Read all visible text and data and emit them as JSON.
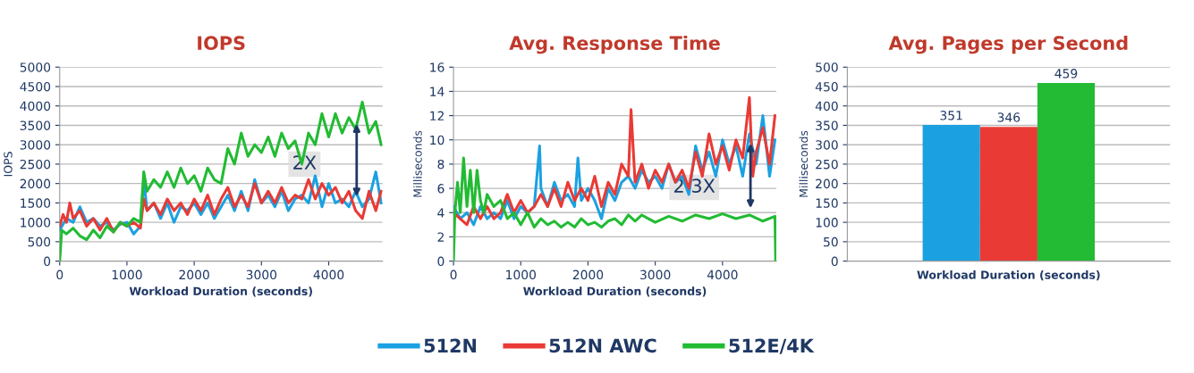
{
  "chart_data": [
    {
      "type": "line",
      "title": "IOPS",
      "xlabel": "Workload Duration (seconds)",
      "ylabel": "IOPS",
      "xlim": [
        0,
        4800
      ],
      "xticks": [
        0,
        1000,
        2000,
        3000,
        4000
      ],
      "ylim": [
        0,
        5000
      ],
      "yticks": [
        0,
        500,
        1000,
        1500,
        2000,
        2500,
        3000,
        3500,
        4000,
        4500,
        5000
      ],
      "grid": "y",
      "legend": "bottom",
      "annotations": [
        "2X"
      ],
      "series": [
        {
          "name": "512N",
          "color": "#1ba1e2",
          "x": [
            0,
            100,
            200,
            300,
            400,
            500,
            600,
            700,
            800,
            900,
            1000,
            1100,
            1200,
            1250,
            1300,
            1400,
            1500,
            1600,
            1700,
            1800,
            1900,
            2000,
            2100,
            2200,
            2300,
            2400,
            2500,
            2600,
            2700,
            2800,
            2900,
            3000,
            3100,
            3200,
            3300,
            3400,
            3500,
            3600,
            3700,
            3800,
            3900,
            4000,
            4100,
            4200,
            4300,
            4400,
            4500,
            4600,
            4700,
            4780
          ],
          "values": [
            800,
            1100,
            1000,
            1400,
            1000,
            1100,
            900,
            1000,
            800,
            950,
            1000,
            700,
            900,
            2100,
            1300,
            1500,
            1100,
            1500,
            1000,
            1400,
            1300,
            1500,
            1200,
            1500,
            1100,
            1400,
            1700,
            1300,
            1800,
            1300,
            2100,
            1500,
            1700,
            1400,
            1800,
            1300,
            1600,
            1700,
            1500,
            2200,
            1400,
            2000,
            1500,
            1600,
            1400,
            1800,
            1400,
            1600,
            2300,
            1500
          ]
        },
        {
          "name": "512N AWC",
          "color": "#e93a35",
          "x": [
            0,
            50,
            100,
            150,
            200,
            300,
            400,
            500,
            600,
            700,
            800,
            900,
            1000,
            1100,
            1200,
            1250,
            1300,
            1400,
            1500,
            1600,
            1700,
            1800,
            1900,
            2000,
            2100,
            2200,
            2300,
            2400,
            2500,
            2600,
            2700,
            2800,
            2900,
            3000,
            3100,
            3200,
            3300,
            3400,
            3500,
            3600,
            3700,
            3800,
            3900,
            4000,
            4100,
            4200,
            4300,
            4400,
            4500,
            4600,
            4700,
            4780
          ],
          "values": [
            900,
            1200,
            1000,
            1500,
            1100,
            1300,
            900,
            1100,
            800,
            1100,
            750,
            1000,
            900,
            1000,
            850,
            1600,
            1300,
            1500,
            1200,
            1600,
            1300,
            1500,
            1200,
            1600,
            1300,
            1700,
            1200,
            1600,
            1900,
            1400,
            1700,
            1400,
            2000,
            1500,
            1800,
            1500,
            1900,
            1500,
            1700,
            1600,
            2100,
            1600,
            2000,
            1700,
            1900,
            1500,
            1800,
            1300,
            1100,
            1800,
            1300,
            1800
          ]
        },
        {
          "name": "512E/4K",
          "color": "#22bb33",
          "x": [
            0,
            30,
            100,
            200,
            300,
            400,
            500,
            600,
            700,
            800,
            900,
            1000,
            1100,
            1200,
            1250,
            1300,
            1400,
            1500,
            1600,
            1700,
            1800,
            1900,
            2000,
            2100,
            2200,
            2300,
            2400,
            2500,
            2600,
            2700,
            2800,
            2900,
            3000,
            3100,
            3200,
            3300,
            3400,
            3500,
            3600,
            3700,
            3800,
            3900,
            4000,
            4100,
            4200,
            4300,
            4400,
            4500,
            4600,
            4700,
            4780
          ],
          "values": [
            0,
            800,
            700,
            850,
            650,
            550,
            800,
            600,
            900,
            750,
            1000,
            900,
            1100,
            1000,
            2300,
            1800,
            2100,
            1900,
            2300,
            1900,
            2400,
            2000,
            2200,
            1800,
            2400,
            2100,
            2000,
            2900,
            2500,
            3300,
            2700,
            3000,
            2800,
            3200,
            2700,
            3300,
            2900,
            3100,
            2500,
            3300,
            3000,
            3800,
            3200,
            3800,
            3300,
            3700,
            3400,
            4100,
            3300,
            3600,
            3000
          ]
        }
      ]
    },
    {
      "type": "line",
      "title": "Avg. Response Time",
      "xlabel": "Workload Duration (seconds)",
      "ylabel": "Milliseconds",
      "xlim": [
        0,
        4800
      ],
      "xticks": [
        0,
        1000,
        2000,
        3000,
        4000
      ],
      "ylim": [
        0,
        16
      ],
      "yticks": [
        0,
        2,
        4,
        6,
        8,
        10,
        12,
        14,
        16
      ],
      "grid": "y",
      "annotations": [
        "2.3X"
      ],
      "series": [
        {
          "color": "#1ba1e2",
          "x": [
            0,
            100,
            200,
            300,
            400,
            500,
            600,
            700,
            800,
            900,
            1000,
            1100,
            1200,
            1280,
            1300,
            1400,
            1500,
            1600,
            1700,
            1800,
            1850,
            1900,
            2000,
            2100,
            2200,
            2300,
            2400,
            2500,
            2600,
            2700,
            2800,
            2900,
            3000,
            3100,
            3200,
            3300,
            3400,
            3500,
            3600,
            3700,
            3800,
            3900,
            4000,
            4100,
            4200,
            4300,
            4400,
            4500,
            4600,
            4700,
            4780
          ],
          "values": [
            4.5,
            3.5,
            4,
            3,
            4.5,
            3.5,
            4,
            3.5,
            5,
            3.5,
            4.5,
            4,
            4.5,
            9.5,
            6,
            4.5,
            6.5,
            5,
            5.5,
            4.5,
            8.5,
            5,
            6,
            5,
            3.5,
            6,
            5,
            6.5,
            7,
            6,
            7.5,
            6.5,
            7,
            6,
            8,
            6.5,
            7,
            5.5,
            9.5,
            7.5,
            9,
            7,
            10,
            8,
            9.5,
            7,
            10.5,
            8,
            12,
            7,
            10
          ]
        },
        {
          "color": "#e93a35",
          "x": [
            0,
            100,
            200,
            300,
            400,
            500,
            600,
            700,
            800,
            900,
            1000,
            1100,
            1200,
            1300,
            1400,
            1500,
            1600,
            1700,
            1800,
            1900,
            2000,
            2100,
            2200,
            2300,
            2400,
            2500,
            2600,
            2640,
            2700,
            2800,
            2900,
            3000,
            3100,
            3200,
            3300,
            3400,
            3500,
            3600,
            3700,
            3800,
            3900,
            4000,
            4100,
            4200,
            4300,
            4400,
            4450,
            4500,
            4600,
            4700,
            4780
          ],
          "values": [
            4,
            3.5,
            3,
            4.5,
            3.5,
            4.5,
            3.5,
            4,
            5.5,
            4,
            5,
            4,
            4.5,
            5.5,
            4.5,
            6,
            4.5,
            6.5,
            5,
            6,
            5,
            7,
            4.5,
            6.5,
            5.5,
            8,
            7,
            12.5,
            6.5,
            8,
            6,
            7.5,
            6.5,
            8,
            6.5,
            7.5,
            6,
            9,
            7,
            10.5,
            8,
            9.5,
            7.5,
            10,
            8.5,
            13.5,
            7,
            9,
            11,
            8,
            12
          ]
        },
        {
          "color": "#22bb33",
          "x": [
            0,
            20,
            60,
            100,
            150,
            200,
            250,
            300,
            350,
            400,
            450,
            500,
            600,
            700,
            800,
            900,
            1000,
            1100,
            1200,
            1300,
            1400,
            1500,
            1600,
            1700,
            1800,
            1900,
            2000,
            2100,
            2200,
            2300,
            2400,
            2500,
            2600,
            2700,
            2800,
            2900,
            3000,
            3200,
            3400,
            3600,
            3800,
            4000,
            4200,
            4400,
            4600,
            4780,
            4790
          ],
          "values": [
            0,
            4,
            6.5,
            4,
            8.5,
            4.5,
            7.5,
            4,
            7.5,
            5,
            4,
            5.5,
            4.5,
            5,
            3.5,
            4,
            3,
            4,
            2.8,
            3.5,
            3,
            3.3,
            2.8,
            3.2,
            2.8,
            3.5,
            3,
            3.2,
            2.8,
            3.3,
            3.5,
            3,
            3.8,
            3.3,
            3.8,
            3.5,
            3.2,
            3.7,
            3.3,
            3.8,
            3.5,
            3.9,
            3.5,
            3.8,
            3.3,
            3.7,
            0
          ]
        }
      ]
    },
    {
      "type": "bar",
      "title": "Avg. Pages per Second",
      "xlabel": "Workload Duration (seconds)",
      "ylabel": "Milliseconds",
      "categories": [
        null
      ],
      "ylim": [
        0,
        500
      ],
      "yticks": [
        0,
        50,
        100,
        150,
        200,
        250,
        300,
        350,
        400,
        450,
        500
      ],
      "grid": "y",
      "data_labels": true,
      "series": [
        {
          "color": "#1ba1e2",
          "values": [
            351
          ]
        },
        {
          "color": "#e93a35",
          "values": [
            346
          ]
        },
        {
          "color": "#22bb33",
          "values": [
            459
          ]
        }
      ]
    }
  ]
}
